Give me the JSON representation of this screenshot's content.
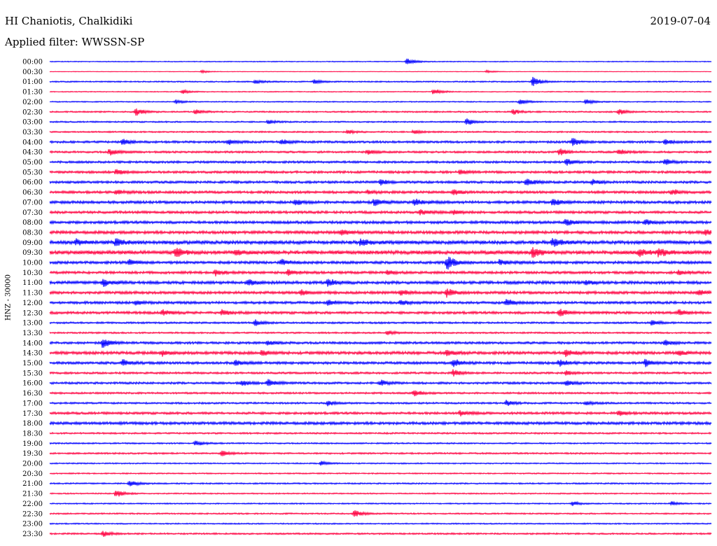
{
  "header": {
    "station": "HI Chaniotis, Chalkidiki",
    "date": "2019-07-04",
    "filter": "Applied filter: WWSSN-SP"
  },
  "chart_data": {
    "type": "line",
    "title": "HI Chaniotis, Chalkidiki",
    "subtitle": "Applied filter: WWSSN-SP",
    "date": "2019-07-04",
    "ylabel": "HNZ - 30000",
    "xlabel": "",
    "grid": false,
    "series_colors": [
      "#0000ff",
      "#ff0040"
    ],
    "rows": [
      {
        "time": "00:00",
        "noise": 0.5,
        "events": [
          {
            "x": 0.54,
            "a": 5
          }
        ]
      },
      {
        "time": "00:30",
        "noise": 0.3,
        "events": [
          {
            "x": 0.23,
            "a": 2
          },
          {
            "x": 0.66,
            "a": 2
          }
        ]
      },
      {
        "time": "01:00",
        "noise": 0.7,
        "events": [
          {
            "x": 0.31,
            "a": 3
          },
          {
            "x": 0.4,
            "a": 3
          },
          {
            "x": 0.73,
            "a": 8
          }
        ]
      },
      {
        "time": "01:30",
        "noise": 0.5,
        "events": [
          {
            "x": 0.2,
            "a": 3
          },
          {
            "x": 0.58,
            "a": 5
          }
        ]
      },
      {
        "time": "02:00",
        "noise": 0.6,
        "events": [
          {
            "x": 0.19,
            "a": 3
          },
          {
            "x": 0.71,
            "a": 4
          },
          {
            "x": 0.81,
            "a": 4
          }
        ]
      },
      {
        "time": "02:30",
        "noise": 0.8,
        "events": [
          {
            "x": 0.13,
            "a": 6
          },
          {
            "x": 0.22,
            "a": 4
          },
          {
            "x": 0.7,
            "a": 4
          },
          {
            "x": 0.86,
            "a": 4
          }
        ]
      },
      {
        "time": "03:00",
        "noise": 0.8,
        "events": [
          {
            "x": 0.33,
            "a": 3
          },
          {
            "x": 0.63,
            "a": 5
          }
        ]
      },
      {
        "time": "03:30",
        "noise": 0.8,
        "events": [
          {
            "x": 0.45,
            "a": 3
          },
          {
            "x": 0.55,
            "a": 3
          }
        ]
      },
      {
        "time": "04:00",
        "noise": 1.2,
        "events": [
          {
            "x": 0.11,
            "a": 5
          },
          {
            "x": 0.27,
            "a": 4
          },
          {
            "x": 0.35,
            "a": 4
          },
          {
            "x": 0.79,
            "a": 6
          },
          {
            "x": 0.93,
            "a": 4
          }
        ]
      },
      {
        "time": "04:30",
        "noise": 1.1,
        "events": [
          {
            "x": 0.09,
            "a": 5
          },
          {
            "x": 0.48,
            "a": 4
          },
          {
            "x": 0.77,
            "a": 5
          },
          {
            "x": 0.86,
            "a": 4
          }
        ]
      },
      {
        "time": "05:00",
        "noise": 1.2,
        "events": [
          {
            "x": 0.78,
            "a": 5
          },
          {
            "x": 0.93,
            "a": 4
          }
        ]
      },
      {
        "time": "05:30",
        "noise": 1.3,
        "events": [
          {
            "x": 0.1,
            "a": 4
          },
          {
            "x": 0.62,
            "a": 3
          }
        ]
      },
      {
        "time": "06:00",
        "noise": 1.3,
        "events": [
          {
            "x": 0.5,
            "a": 4
          },
          {
            "x": 0.72,
            "a": 6
          },
          {
            "x": 0.82,
            "a": 4
          }
        ]
      },
      {
        "time": "06:30",
        "noise": 1.4,
        "events": [
          {
            "x": 0.1,
            "a": 3
          },
          {
            "x": 0.48,
            "a": 3
          },
          {
            "x": 0.61,
            "a": 4
          },
          {
            "x": 0.94,
            "a": 4
          }
        ]
      },
      {
        "time": "07:00",
        "noise": 1.5,
        "events": [
          {
            "x": 0.37,
            "a": 4
          },
          {
            "x": 0.49,
            "a": 5
          },
          {
            "x": 0.55,
            "a": 5
          },
          {
            "x": 0.76,
            "a": 6
          }
        ]
      },
      {
        "time": "07:30",
        "noise": 1.4,
        "events": [
          {
            "x": 0.56,
            "a": 4
          },
          {
            "x": 0.61,
            "a": 3
          }
        ]
      },
      {
        "time": "08:00",
        "noise": 1.5,
        "events": [
          {
            "x": 0.78,
            "a": 5
          },
          {
            "x": 0.9,
            "a": 4
          }
        ]
      },
      {
        "time": "08:30",
        "noise": 1.6,
        "events": [
          {
            "x": 0.44,
            "a": 4
          },
          {
            "x": 0.99,
            "a": 4
          }
        ]
      },
      {
        "time": "09:00",
        "noise": 1.9,
        "events": [
          {
            "x": 0.04,
            "a": 4
          },
          {
            "x": 0.1,
            "a": 6
          },
          {
            "x": 0.47,
            "a": 6
          },
          {
            "x": 0.76,
            "a": 6
          }
        ]
      },
      {
        "time": "09:30",
        "noise": 2.0,
        "events": [
          {
            "x": 0.19,
            "a": 8
          },
          {
            "x": 0.28,
            "a": 4
          },
          {
            "x": 0.73,
            "a": 7
          },
          {
            "x": 0.89,
            "a": 6
          },
          {
            "x": 0.92,
            "a": 6
          }
        ]
      },
      {
        "time": "10:00",
        "noise": 1.5,
        "events": [
          {
            "x": 0.12,
            "a": 4
          },
          {
            "x": 0.35,
            "a": 4
          },
          {
            "x": 0.6,
            "a": 11
          },
          {
            "x": 0.68,
            "a": 4
          }
        ]
      },
      {
        "time": "10:30",
        "noise": 1.4,
        "events": [
          {
            "x": 0.25,
            "a": 4
          },
          {
            "x": 0.36,
            "a": 4
          },
          {
            "x": 0.51,
            "a": 3
          },
          {
            "x": 0.95,
            "a": 3
          }
        ]
      },
      {
        "time": "11:00",
        "noise": 1.6,
        "events": [
          {
            "x": 0.08,
            "a": 6
          },
          {
            "x": 0.3,
            "a": 4
          },
          {
            "x": 0.42,
            "a": 6
          },
          {
            "x": 0.81,
            "a": 3
          }
        ]
      },
      {
        "time": "11:30",
        "noise": 1.5,
        "events": [
          {
            "x": 0.38,
            "a": 4
          },
          {
            "x": 0.53,
            "a": 4
          },
          {
            "x": 0.6,
            "a": 6
          },
          {
            "x": 0.98,
            "a": 4
          }
        ]
      },
      {
        "time": "12:00",
        "noise": 1.4,
        "events": [
          {
            "x": 0.13,
            "a": 3
          },
          {
            "x": 0.42,
            "a": 4
          },
          {
            "x": 0.53,
            "a": 4
          },
          {
            "x": 0.69,
            "a": 5
          }
        ]
      },
      {
        "time": "12:30",
        "noise": 1.4,
        "events": [
          {
            "x": 0.17,
            "a": 4
          },
          {
            "x": 0.26,
            "a": 4
          },
          {
            "x": 0.77,
            "a": 6
          },
          {
            "x": 0.95,
            "a": 4
          }
        ]
      },
      {
        "time": "13:00",
        "noise": 1.0,
        "events": [
          {
            "x": 0.31,
            "a": 4
          },
          {
            "x": 0.91,
            "a": 4
          }
        ]
      },
      {
        "time": "13:30",
        "noise": 0.9,
        "events": [
          {
            "x": 0.51,
            "a": 3
          }
        ]
      },
      {
        "time": "14:00",
        "noise": 1.3,
        "events": [
          {
            "x": 0.08,
            "a": 7
          },
          {
            "x": 0.33,
            "a": 3
          },
          {
            "x": 0.93,
            "a": 4
          }
        ]
      },
      {
        "time": "14:30",
        "noise": 1.6,
        "events": [
          {
            "x": 0.17,
            "a": 4
          },
          {
            "x": 0.32,
            "a": 4
          },
          {
            "x": 0.6,
            "a": 4
          },
          {
            "x": 0.78,
            "a": 5
          },
          {
            "x": 0.95,
            "a": 4
          }
        ]
      },
      {
        "time": "15:00",
        "noise": 1.4,
        "events": [
          {
            "x": 0.11,
            "a": 5
          },
          {
            "x": 0.28,
            "a": 4
          },
          {
            "x": 0.61,
            "a": 6
          },
          {
            "x": 0.77,
            "a": 5
          },
          {
            "x": 0.9,
            "a": 5
          }
        ]
      },
      {
        "time": "15:30",
        "noise": 1.1,
        "events": [
          {
            "x": 0.61,
            "a": 5
          },
          {
            "x": 0.78,
            "a": 3
          }
        ]
      },
      {
        "time": "16:00",
        "noise": 1.2,
        "events": [
          {
            "x": 0.29,
            "a": 4
          },
          {
            "x": 0.33,
            "a": 5
          },
          {
            "x": 0.5,
            "a": 4
          },
          {
            "x": 0.78,
            "a": 4
          }
        ]
      },
      {
        "time": "16:30",
        "noise": 1.0,
        "events": [
          {
            "x": 0.55,
            "a": 5
          }
        ]
      },
      {
        "time": "17:00",
        "noise": 1.0,
        "events": [
          {
            "x": 0.42,
            "a": 4
          },
          {
            "x": 0.69,
            "a": 4
          },
          {
            "x": 0.81,
            "a": 3
          }
        ]
      },
      {
        "time": "17:30",
        "noise": 1.3,
        "events": [
          {
            "x": 0.62,
            "a": 4
          },
          {
            "x": 0.86,
            "a": 4
          }
        ]
      },
      {
        "time": "18:00",
        "noise": 1.5,
        "events": []
      },
      {
        "time": "18:30",
        "noise": 0.9,
        "events": []
      },
      {
        "time": "19:00",
        "noise": 0.8,
        "events": [
          {
            "x": 0.22,
            "a": 4
          }
        ]
      },
      {
        "time": "19:30",
        "noise": 0.9,
        "events": [
          {
            "x": 0.26,
            "a": 4
          }
        ]
      },
      {
        "time": "20:00",
        "noise": 0.7,
        "events": [
          {
            "x": 0.41,
            "a": 3
          }
        ]
      },
      {
        "time": "20:30",
        "noise": 0.7,
        "events": []
      },
      {
        "time": "21:00",
        "noise": 0.8,
        "events": [
          {
            "x": 0.12,
            "a": 5
          }
        ]
      },
      {
        "time": "21:30",
        "noise": 0.7,
        "events": [
          {
            "x": 0.1,
            "a": 6
          }
        ]
      },
      {
        "time": "22:00",
        "noise": 0.7,
        "events": [
          {
            "x": 0.79,
            "a": 3
          },
          {
            "x": 0.94,
            "a": 3
          }
        ]
      },
      {
        "time": "22:30",
        "noise": 0.8,
        "events": [
          {
            "x": 0.46,
            "a": 5
          }
        ]
      },
      {
        "time": "23:00",
        "noise": 0.7,
        "events": []
      },
      {
        "time": "23:30",
        "noise": 0.9,
        "events": [
          {
            "x": 0.08,
            "a": 4
          }
        ]
      }
    ]
  }
}
